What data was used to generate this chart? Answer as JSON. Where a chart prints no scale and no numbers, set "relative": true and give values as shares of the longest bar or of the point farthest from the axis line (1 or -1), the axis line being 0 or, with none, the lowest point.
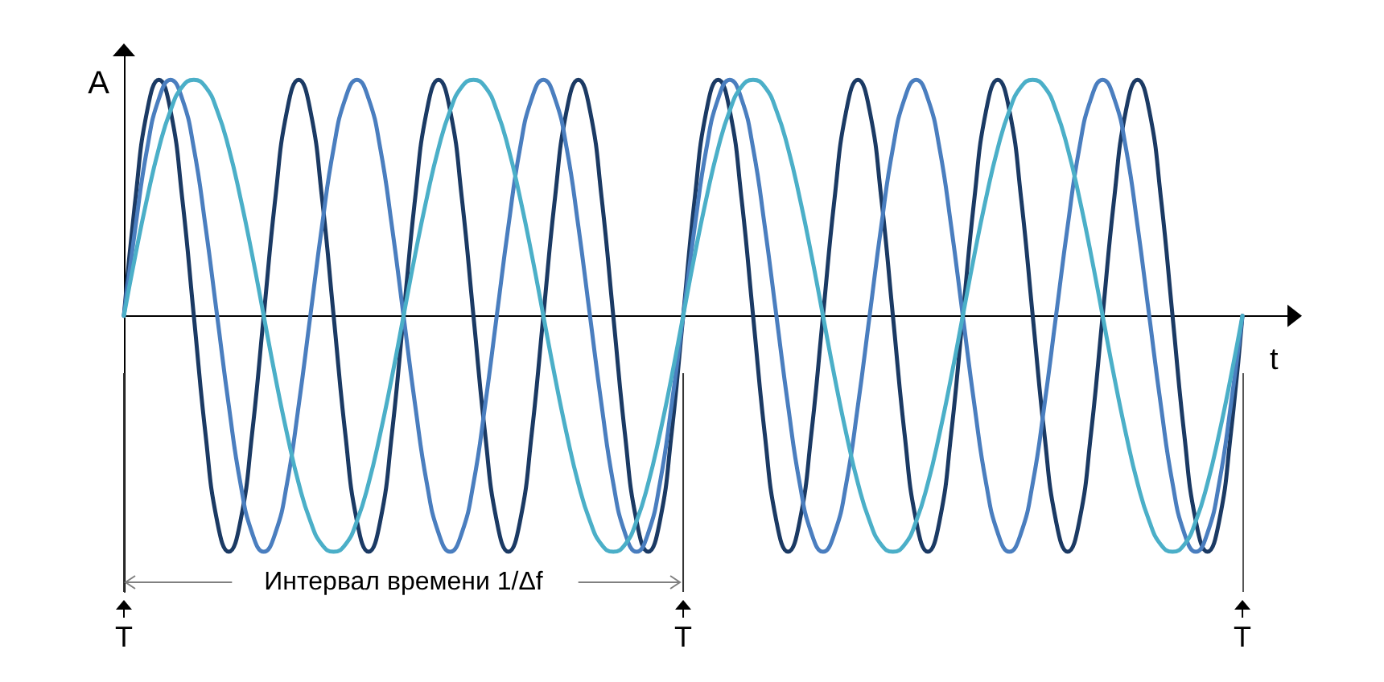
{
  "chart_data": {
    "type": "line",
    "relative": true,
    "xlabel": "t",
    "ylabel": "A",
    "annotations": [
      "Интервал времени 1/Δf"
    ],
    "categories": [
      "T",
      null,
      null,
      null,
      null,
      null,
      null,
      null,
      null,
      null,
      null,
      null,
      null,
      null,
      null,
      null,
      null,
      null,
      null,
      null,
      null,
      null,
      null,
      null,
      null,
      null,
      null,
      null,
      null,
      null,
      null,
      null,
      null,
      null,
      null,
      null,
      null,
      null,
      null,
      null,
      null,
      null,
      null,
      null,
      null,
      null,
      null,
      null,
      "T",
      null,
      null,
      null,
      null,
      null,
      null,
      null,
      null,
      null,
      null,
      null,
      null,
      null,
      null,
      null,
      null,
      null,
      null,
      null,
      null,
      null,
      null,
      null,
      null,
      null,
      null,
      null,
      null,
      null,
      null,
      null,
      null,
      null,
      null,
      null,
      null,
      null,
      null,
      null,
      null,
      null,
      null,
      null,
      null,
      null,
      null,
      null,
      "T",
      null,
      null,
      null,
      null
    ],
    "marker": "none",
    "line_style": "solid",
    "series": [
      {
        "color": "#1b3a64",
        "values": [
          0,
          0.5,
          0.87,
          1,
          0.87,
          0.5,
          0,
          -0.5,
          -0.87,
          -1,
          -0.87,
          -0.5,
          0,
          0.5,
          0.87,
          1,
          0.87,
          0.5,
          0,
          -0.5,
          -0.87,
          -1,
          -0.87,
          -0.5,
          0,
          0.5,
          0.87,
          1,
          0.87,
          0.5,
          0,
          -0.5,
          -0.87,
          -1,
          -0.87,
          -0.5,
          0,
          0.5,
          0.87,
          1,
          0.87,
          0.5,
          0,
          -0.5,
          -0.87,
          -1,
          -0.87,
          -0.5,
          0,
          0.5,
          0.87,
          1,
          0.87,
          0.5,
          0,
          -0.5,
          -0.87,
          -1,
          -0.87,
          -0.5,
          0,
          0.5,
          0.87,
          1,
          0.87,
          0.5,
          0,
          -0.5,
          -0.87,
          -1,
          -0.87,
          -0.5,
          0,
          0.5,
          0.87,
          1,
          0.87,
          0.5,
          0,
          -0.5,
          -0.87,
          -1,
          -0.87,
          -0.5,
          0,
          0.5,
          0.87,
          1,
          0.87,
          0.5,
          0,
          -0.5,
          -0.87,
          -1,
          -0.87,
          -0.5,
          0,
          null,
          null,
          null,
          null
        ]
      },
      {
        "color": "#4a7ebf",
        "values": [
          0,
          0.38,
          0.71,
          0.92,
          1,
          0.92,
          0.71,
          0.38,
          0,
          -0.38,
          -0.71,
          -0.92,
          -1,
          -0.92,
          -0.71,
          -0.38,
          0,
          0.38,
          0.71,
          0.92,
          1,
          0.92,
          0.71,
          0.38,
          0,
          -0.38,
          -0.71,
          -0.92,
          -1,
          -0.92,
          -0.71,
          -0.38,
          0,
          0.38,
          0.71,
          0.92,
          1,
          0.92,
          0.71,
          0.38,
          0,
          -0.38,
          -0.71,
          -0.92,
          -1,
          -0.92,
          -0.71,
          -0.38,
          0,
          0.38,
          0.71,
          0.92,
          1,
          0.92,
          0.71,
          0.38,
          0,
          -0.38,
          -0.71,
          -0.92,
          -1,
          -0.92,
          -0.71,
          -0.38,
          0,
          0.38,
          0.71,
          0.92,
          1,
          0.92,
          0.71,
          0.38,
          0,
          -0.38,
          -0.71,
          -0.92,
          -1,
          -0.92,
          -0.71,
          -0.38,
          0,
          0.38,
          0.71,
          0.92,
          1,
          0.92,
          0.71,
          0.38,
          0,
          -0.38,
          -0.71,
          -0.92,
          -1,
          -0.92,
          -0.71,
          -0.38,
          0,
          null,
          null,
          null,
          null
        ]
      },
      {
        "color": "#4bafc8",
        "values": [
          0,
          0.26,
          0.5,
          0.71,
          0.87,
          0.97,
          1,
          0.97,
          0.87,
          0.71,
          0.5,
          0.26,
          0,
          -0.26,
          -0.5,
          -0.71,
          -0.87,
          -0.97,
          -1,
          -0.97,
          -0.87,
          -0.71,
          -0.5,
          -0.26,
          0,
          0.26,
          0.5,
          0.71,
          0.87,
          0.97,
          1,
          0.97,
          0.87,
          0.71,
          0.5,
          0.26,
          0,
          -0.26,
          -0.5,
          -0.71,
          -0.87,
          -0.97,
          -1,
          -0.97,
          -0.87,
          -0.71,
          -0.5,
          -0.26,
          0,
          0.26,
          0.5,
          0.71,
          0.87,
          0.97,
          1,
          0.97,
          0.87,
          0.71,
          0.5,
          0.26,
          0,
          -0.26,
          -0.5,
          -0.71,
          -0.87,
          -0.97,
          -1,
          -0.97,
          -0.87,
          -0.71,
          -0.5,
          -0.26,
          0,
          0.26,
          0.5,
          0.71,
          0.87,
          0.97,
          1,
          0.97,
          0.87,
          0.71,
          0.5,
          0.26,
          0,
          -0.26,
          -0.5,
          -0.71,
          -0.87,
          -0.97,
          -1,
          -0.97,
          -0.87,
          -0.71,
          -0.5,
          -0.26,
          0,
          null,
          null,
          null,
          null
        ]
      }
    ]
  }
}
